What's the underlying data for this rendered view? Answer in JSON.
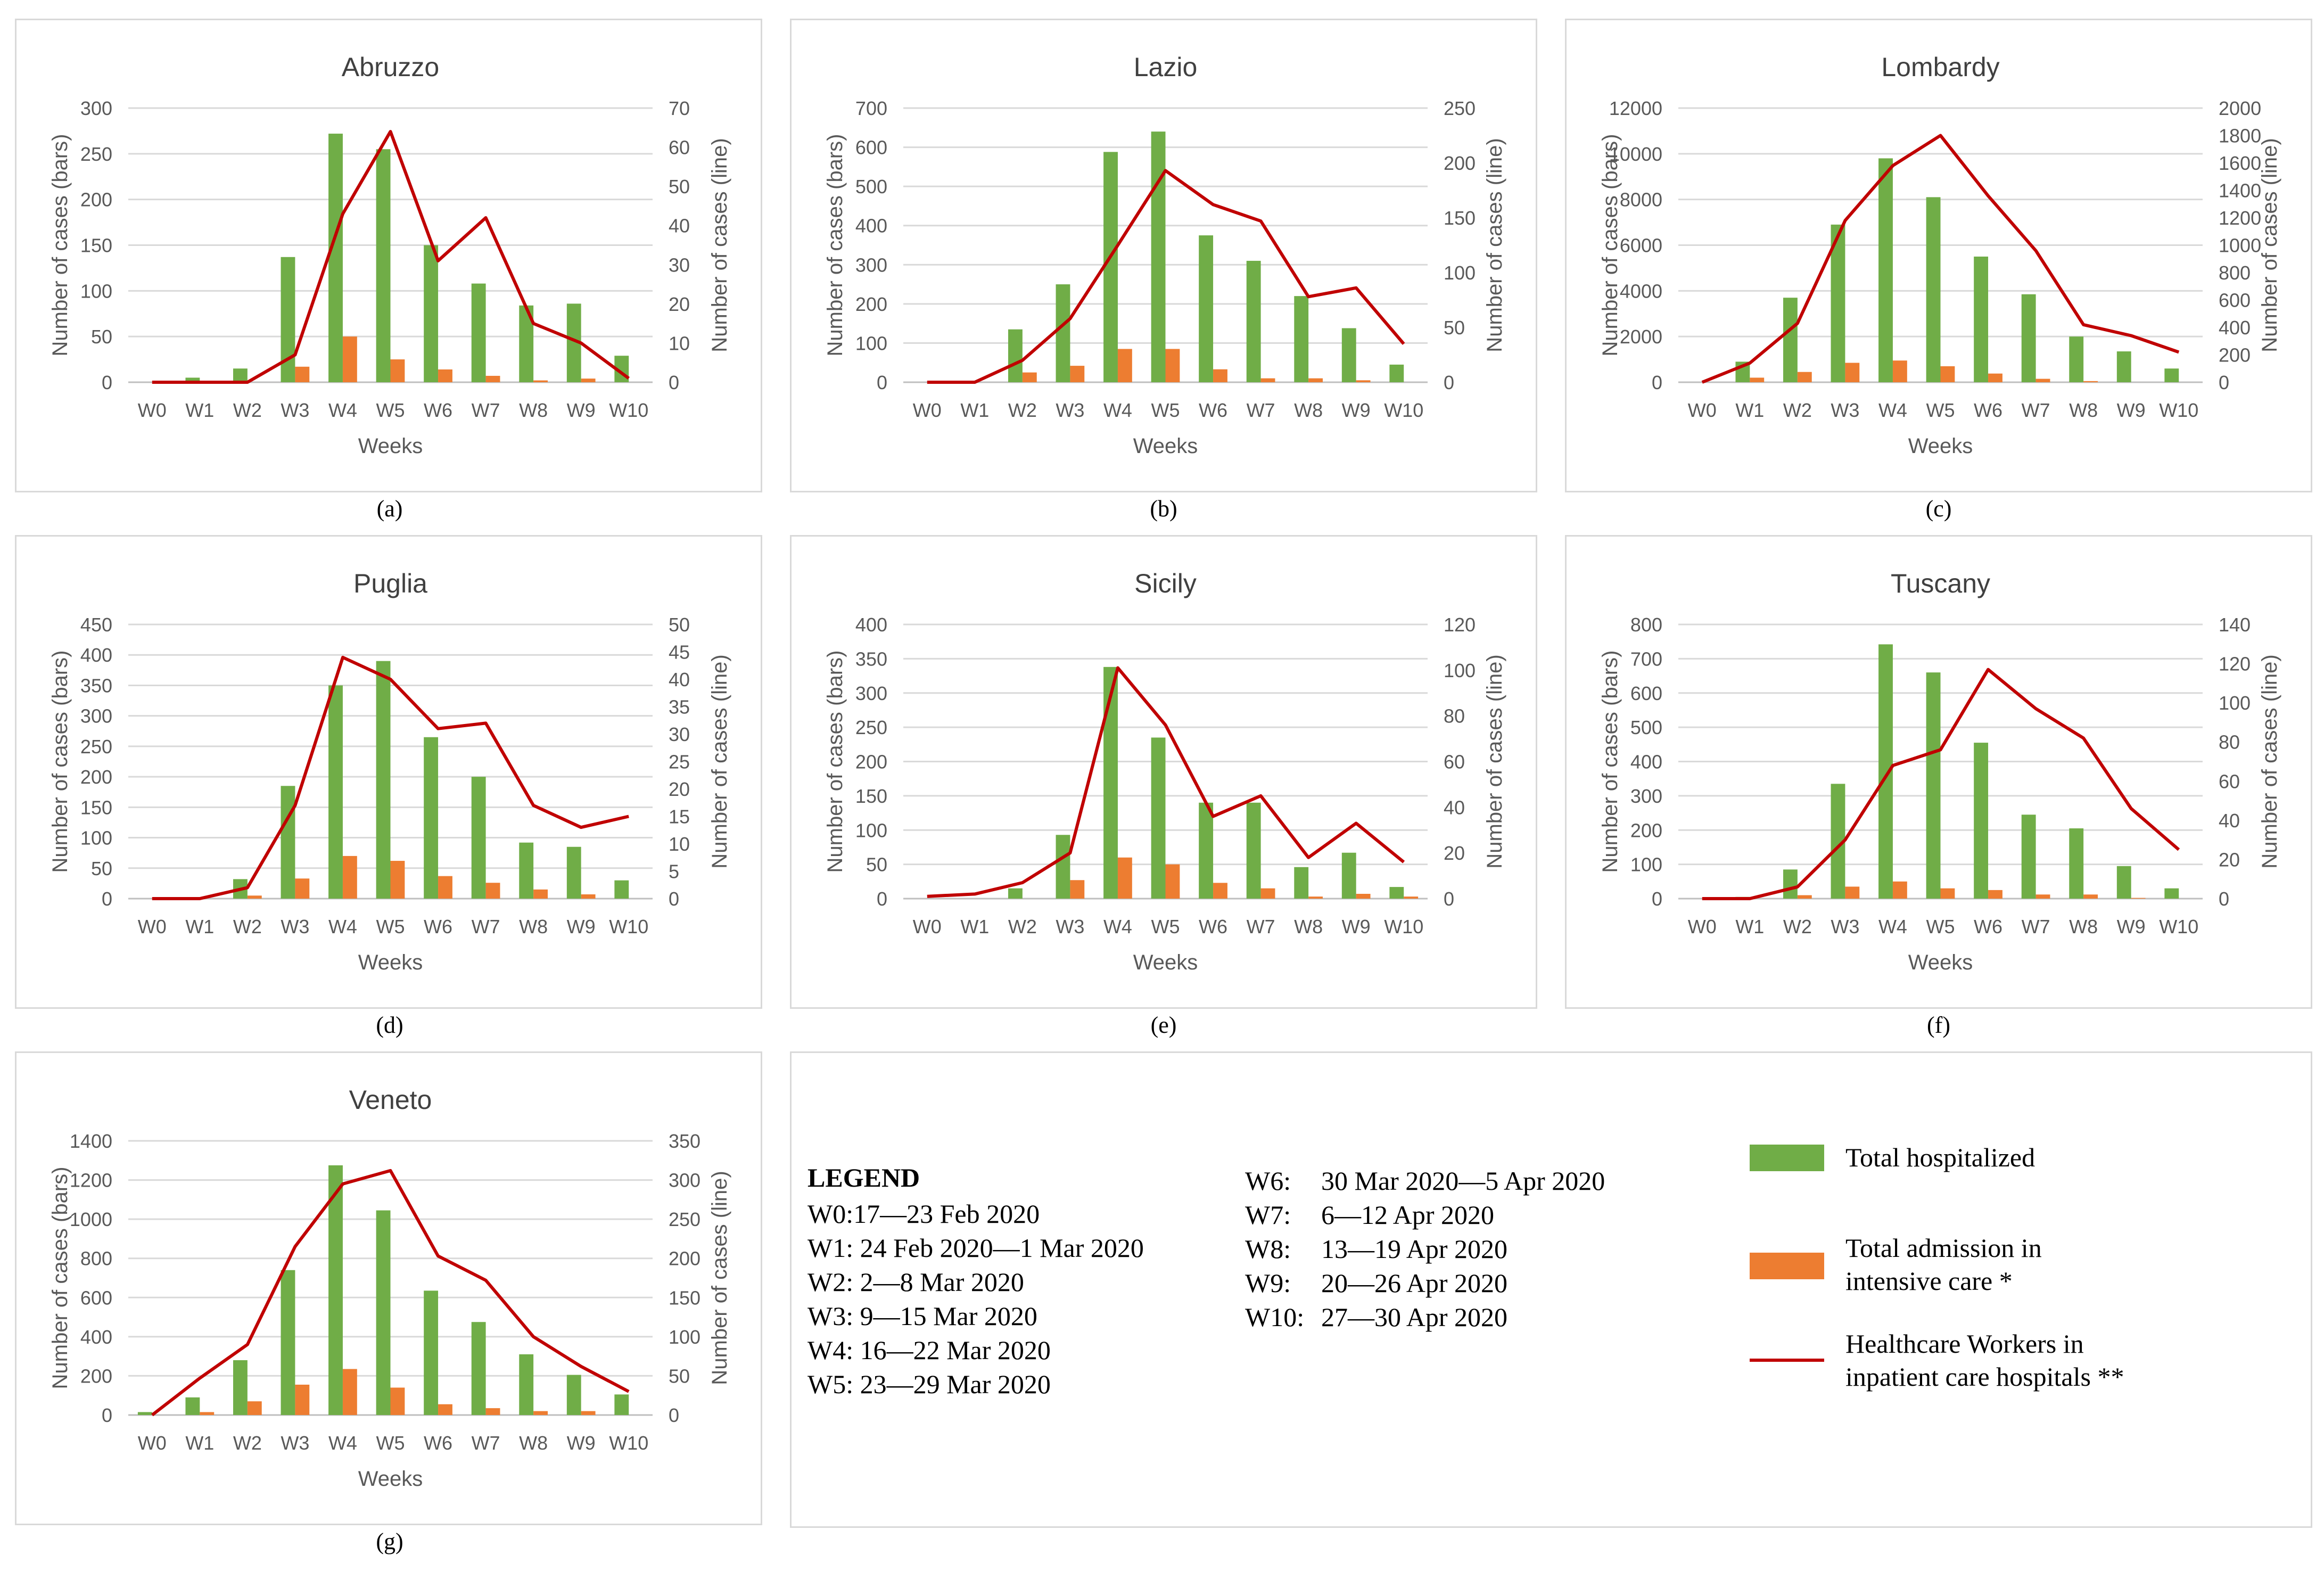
{
  "axes": {
    "xlabel": "Weeks",
    "ylabel_left": "Number of cases  (bars)",
    "ylabel_right": "Number of cases (line)"
  },
  "colors": {
    "hospitalized": "#70ad47",
    "icu": "#ed7d31",
    "hcw": "#c00000",
    "grid": "#d9d9d9",
    "axis_text": "#595959"
  },
  "chart_data": [
    {
      "id": "abruzzo",
      "type": "bar+line",
      "title": "Abruzzo",
      "caption": "(a)",
      "categories": [
        "W0",
        "W1",
        "W2",
        "W3",
        "W4",
        "W5",
        "W6",
        "W7",
        "W8",
        "W9",
        "W10"
      ],
      "left_ticks": [
        0,
        50,
        100,
        150,
        200,
        250,
        300
      ],
      "right_ticks": [
        0,
        10,
        20,
        30,
        40,
        50,
        60,
        70
      ],
      "ylim_left": [
        0,
        300
      ],
      "ylim_right": [
        0,
        70
      ],
      "series": [
        {
          "name": "Total hospitalized",
          "axis": "left",
          "kind": "bar",
          "values": [
            0,
            5,
            15,
            137,
            272,
            255,
            150,
            108,
            84,
            86,
            29
          ]
        },
        {
          "name": "Total admission in intensive care *",
          "axis": "left",
          "kind": "bar",
          "values": [
            0,
            0,
            0,
            17,
            50,
            25,
            14,
            7,
            2,
            4,
            0
          ]
        },
        {
          "name": "Healthcare Workers in inpatient care hospitals **",
          "axis": "right",
          "kind": "line",
          "values": [
            0,
            0,
            0,
            7,
            43,
            64,
            31,
            42,
            15,
            10,
            1
          ]
        }
      ]
    },
    {
      "id": "lazio",
      "type": "bar+line",
      "title": "Lazio",
      "caption": "(b)",
      "categories": [
        "W0",
        "W1",
        "W2",
        "W3",
        "W4",
        "W5",
        "W6",
        "W7",
        "W8",
        "W9",
        "W10"
      ],
      "left_ticks": [
        0,
        100,
        200,
        300,
        400,
        500,
        600,
        700
      ],
      "right_ticks": [
        0,
        50,
        100,
        150,
        200,
        250
      ],
      "ylim_left": [
        0,
        700
      ],
      "ylim_right": [
        0,
        250
      ],
      "series": [
        {
          "name": "Total hospitalized",
          "axis": "left",
          "kind": "bar",
          "values": [
            0,
            0,
            135,
            250,
            588,
            640,
            375,
            310,
            220,
            138,
            45
          ]
        },
        {
          "name": "Total admission in intensive care *",
          "axis": "left",
          "kind": "bar",
          "values": [
            0,
            0,
            25,
            42,
            85,
            85,
            33,
            10,
            10,
            5,
            0
          ]
        },
        {
          "name": "Healthcare Workers in inpatient care hospitals **",
          "axis": "right",
          "kind": "line",
          "values": [
            0,
            0,
            20,
            58,
            125,
            193,
            162,
            147,
            78,
            86,
            35
          ]
        }
      ]
    },
    {
      "id": "lombardy",
      "type": "bar+line",
      "title": "Lombardy",
      "caption": "(c)",
      "categories": [
        "W0",
        "W1",
        "W2",
        "W3",
        "W4",
        "W5",
        "W6",
        "W7",
        "W8",
        "W9",
        "W10"
      ],
      "left_ticks": [
        0,
        2000,
        4000,
        6000,
        8000,
        10000,
        12000
      ],
      "right_ticks": [
        0,
        200,
        400,
        600,
        800,
        1000,
        1200,
        1400,
        1600,
        1800,
        2000
      ],
      "ylim_left": [
        0,
        12000
      ],
      "ylim_right": [
        0,
        2000
      ],
      "series": [
        {
          "name": "Total hospitalized",
          "axis": "left",
          "kind": "bar",
          "values": [
            0,
            900,
            3700,
            6900,
            9800,
            8100,
            5500,
            3850,
            2000,
            1350,
            600
          ]
        },
        {
          "name": "Total admission in intensive care *",
          "axis": "left",
          "kind": "bar",
          "values": [
            0,
            200,
            450,
            850,
            950,
            700,
            380,
            150,
            50,
            0,
            0
          ]
        },
        {
          "name": "Healthcare Workers in inpatient care hospitals **",
          "axis": "right",
          "kind": "line",
          "values": [
            0,
            140,
            430,
            1180,
            1580,
            1800,
            1360,
            960,
            420,
            340,
            220
          ]
        }
      ]
    },
    {
      "id": "puglia",
      "type": "bar+line",
      "title": "Puglia",
      "caption": "(d)",
      "categories": [
        "W0",
        "W1",
        "W2",
        "W3",
        "W4",
        "W5",
        "W6",
        "W7",
        "W8",
        "W9",
        "W10"
      ],
      "left_ticks": [
        0,
        50,
        100,
        150,
        200,
        250,
        300,
        350,
        400,
        450
      ],
      "right_ticks": [
        0,
        5,
        10,
        15,
        20,
        25,
        30,
        35,
        40,
        45,
        50
      ],
      "ylim_left": [
        0,
        450
      ],
      "ylim_right": [
        0,
        50
      ],
      "series": [
        {
          "name": "Total hospitalized",
          "axis": "left",
          "kind": "bar",
          "values": [
            0,
            0,
            32,
            185,
            350,
            390,
            265,
            200,
            92,
            85,
            30
          ]
        },
        {
          "name": "Total admission in intensive care *",
          "axis": "left",
          "kind": "bar",
          "values": [
            0,
            0,
            5,
            33,
            70,
            62,
            37,
            26,
            15,
            7,
            0
          ]
        },
        {
          "name": "Healthcare Workers in inpatient care hospitals **",
          "axis": "right",
          "kind": "line",
          "values": [
            0,
            0,
            2,
            17,
            44,
            40,
            31,
            32,
            17,
            13,
            15
          ]
        }
      ]
    },
    {
      "id": "sicily",
      "type": "bar+line",
      "title": "Sicily",
      "caption": "(e)",
      "categories": [
        "W0",
        "W1",
        "W2",
        "W3",
        "W4",
        "W5",
        "W6",
        "W7",
        "W8",
        "W9",
        "W10"
      ],
      "left_ticks": [
        0,
        50,
        100,
        150,
        200,
        250,
        300,
        350,
        400
      ],
      "right_ticks": [
        0,
        20,
        40,
        60,
        80,
        100,
        120
      ],
      "ylim_left": [
        0,
        400
      ],
      "ylim_right": [
        0,
        120
      ],
      "series": [
        {
          "name": "Total hospitalized",
          "axis": "left",
          "kind": "bar",
          "values": [
            0,
            0,
            15,
            93,
            338,
            235,
            140,
            140,
            46,
            67,
            17
          ]
        },
        {
          "name": "Total admission in intensive care *",
          "axis": "left",
          "kind": "bar",
          "values": [
            0,
            0,
            0,
            27,
            60,
            50,
            23,
            15,
            3,
            7,
            3
          ]
        },
        {
          "name": "Healthcare Workers in inpatient care hospitals **",
          "axis": "right",
          "kind": "line",
          "values": [
            1,
            2,
            7,
            20,
            101,
            76,
            36,
            45,
            18,
            33,
            16
          ]
        }
      ]
    },
    {
      "id": "tuscany",
      "type": "bar+line",
      "title": "Tuscany",
      "caption": "(f)",
      "categories": [
        "W0",
        "W1",
        "W2",
        "W3",
        "W4",
        "W5",
        "W6",
        "W7",
        "W8",
        "W9",
        "W10"
      ],
      "left_ticks": [
        0,
        100,
        200,
        300,
        400,
        500,
        600,
        700,
        800
      ],
      "right_ticks": [
        0,
        20,
        40,
        60,
        80,
        100,
        120,
        140
      ],
      "ylim_left": [
        0,
        800
      ],
      "ylim_right": [
        0,
        140
      ],
      "series": [
        {
          "name": "Total hospitalized",
          "axis": "left",
          "kind": "bar",
          "values": [
            0,
            5,
            85,
            335,
            742,
            660,
            455,
            245,
            205,
            95,
            30
          ]
        },
        {
          "name": "Total admission in intensive care *",
          "axis": "left",
          "kind": "bar",
          "values": [
            0,
            0,
            10,
            35,
            50,
            30,
            25,
            12,
            12,
            2,
            0
          ]
        },
        {
          "name": "Healthcare Workers in inpatient care hospitals **",
          "axis": "right",
          "kind": "line",
          "values": [
            0,
            0,
            6,
            30,
            68,
            76,
            117,
            97,
            82,
            46,
            25
          ]
        }
      ]
    },
    {
      "id": "veneto",
      "type": "bar+line",
      "title": "Veneto",
      "caption": "(g)",
      "categories": [
        "W0",
        "W1",
        "W2",
        "W3",
        "W4",
        "W5",
        "W6",
        "W7",
        "W8",
        "W9",
        "W10"
      ],
      "left_ticks": [
        0,
        200,
        400,
        600,
        800,
        1000,
        1200,
        1400
      ],
      "right_ticks": [
        0,
        50,
        100,
        150,
        200,
        250,
        300,
        350
      ],
      "ylim_left": [
        0,
        1400
      ],
      "ylim_right": [
        0,
        350
      ],
      "series": [
        {
          "name": "Total hospitalized",
          "axis": "left",
          "kind": "bar",
          "values": [
            15,
            90,
            280,
            740,
            1275,
            1045,
            635,
            475,
            310,
            205,
            105
          ]
        },
        {
          "name": "Total admission in intensive care *",
          "axis": "left",
          "kind": "bar",
          "values": [
            0,
            15,
            70,
            155,
            235,
            140,
            55,
            35,
            20,
            20,
            0
          ]
        },
        {
          "name": "Healthcare Workers in inpatient care hospitals **",
          "axis": "right",
          "kind": "line",
          "values": [
            0,
            47,
            90,
            215,
            295,
            312,
            203,
            172,
            100,
            62,
            30
          ]
        }
      ]
    }
  ],
  "legend": {
    "title": "LEGEND",
    "weeks_left": [
      "W0:17—23 Feb 2020",
      "W1: 24 Feb 2020—1 Mar 2020",
      "W2: 2—8 Mar 2020",
      "W3: 9—15 Mar 2020",
      "W4: 16—22 Mar 2020",
      "W5: 23—29 Mar 2020"
    ],
    "weeks_right_codes": [
      "W6:",
      "W7:",
      "W8:",
      "W9:",
      "W10:"
    ],
    "weeks_right_dates": [
      "30 Mar 2020—5 Apr 2020",
      "6—12 Apr 2020",
      "13—19 Apr 2020",
      "20—26 Apr 2020",
      "27—30 Apr 2020"
    ],
    "series_hospitalized": "Total hospitalized",
    "series_icu_line1": "Total admission in",
    "series_icu_line2": "intensive care *",
    "series_hcw_line1": "Healthcare Workers in",
    "series_hcw_line2": "inpatient care hospitals **"
  }
}
